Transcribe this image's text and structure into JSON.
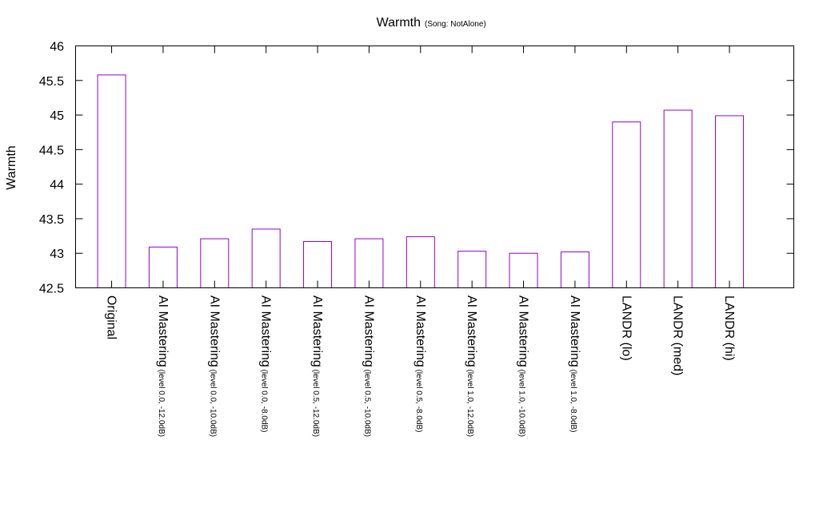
{
  "chart_data": {
    "type": "bar",
    "title": "Warmth",
    "subtitle": "(Song: NotAlone)",
    "xlabel": "",
    "ylabel": "Warmth",
    "ylim": [
      42.5,
      46
    ],
    "yticks": [
      "42.5",
      "43",
      "43.5",
      "44",
      "44.5",
      "45",
      "45.5",
      "46"
    ],
    "grid": false,
    "legend": "none",
    "bar_color": "#9400d3",
    "categories": [
      {
        "main": "Original",
        "sub": ""
      },
      {
        "main": "AI Mastering",
        "sub": "(level 0.0, -12.0dB)"
      },
      {
        "main": "AI Mastering",
        "sub": "(level 0.0, -10.0dB)"
      },
      {
        "main": "AI Mastering",
        "sub": "(level 0.0, -8.0dB)"
      },
      {
        "main": "AI Mastering",
        "sub": "(level 0.5, -12.0dB)"
      },
      {
        "main": "AI Mastering",
        "sub": "(level 0.5, -10.0dB)"
      },
      {
        "main": "AI Mastering",
        "sub": "(level 0.5, -8.0dB)"
      },
      {
        "main": "AI Mastering",
        "sub": "(level 1.0, -12.0dB)"
      },
      {
        "main": "AI Mastering",
        "sub": "(level 1.0, -10.0dB)"
      },
      {
        "main": "AI Mastering",
        "sub": "(level 1.0, -8.0dB)"
      },
      {
        "main": "LANDR (lo)",
        "sub": ""
      },
      {
        "main": "LANDR (med)",
        "sub": ""
      },
      {
        "main": "LANDR (hi)",
        "sub": ""
      }
    ],
    "values": [
      45.58,
      43.09,
      43.21,
      43.35,
      43.17,
      43.21,
      43.24,
      43.03,
      43.0,
      43.02,
      44.9,
      45.07,
      44.99
    ]
  }
}
